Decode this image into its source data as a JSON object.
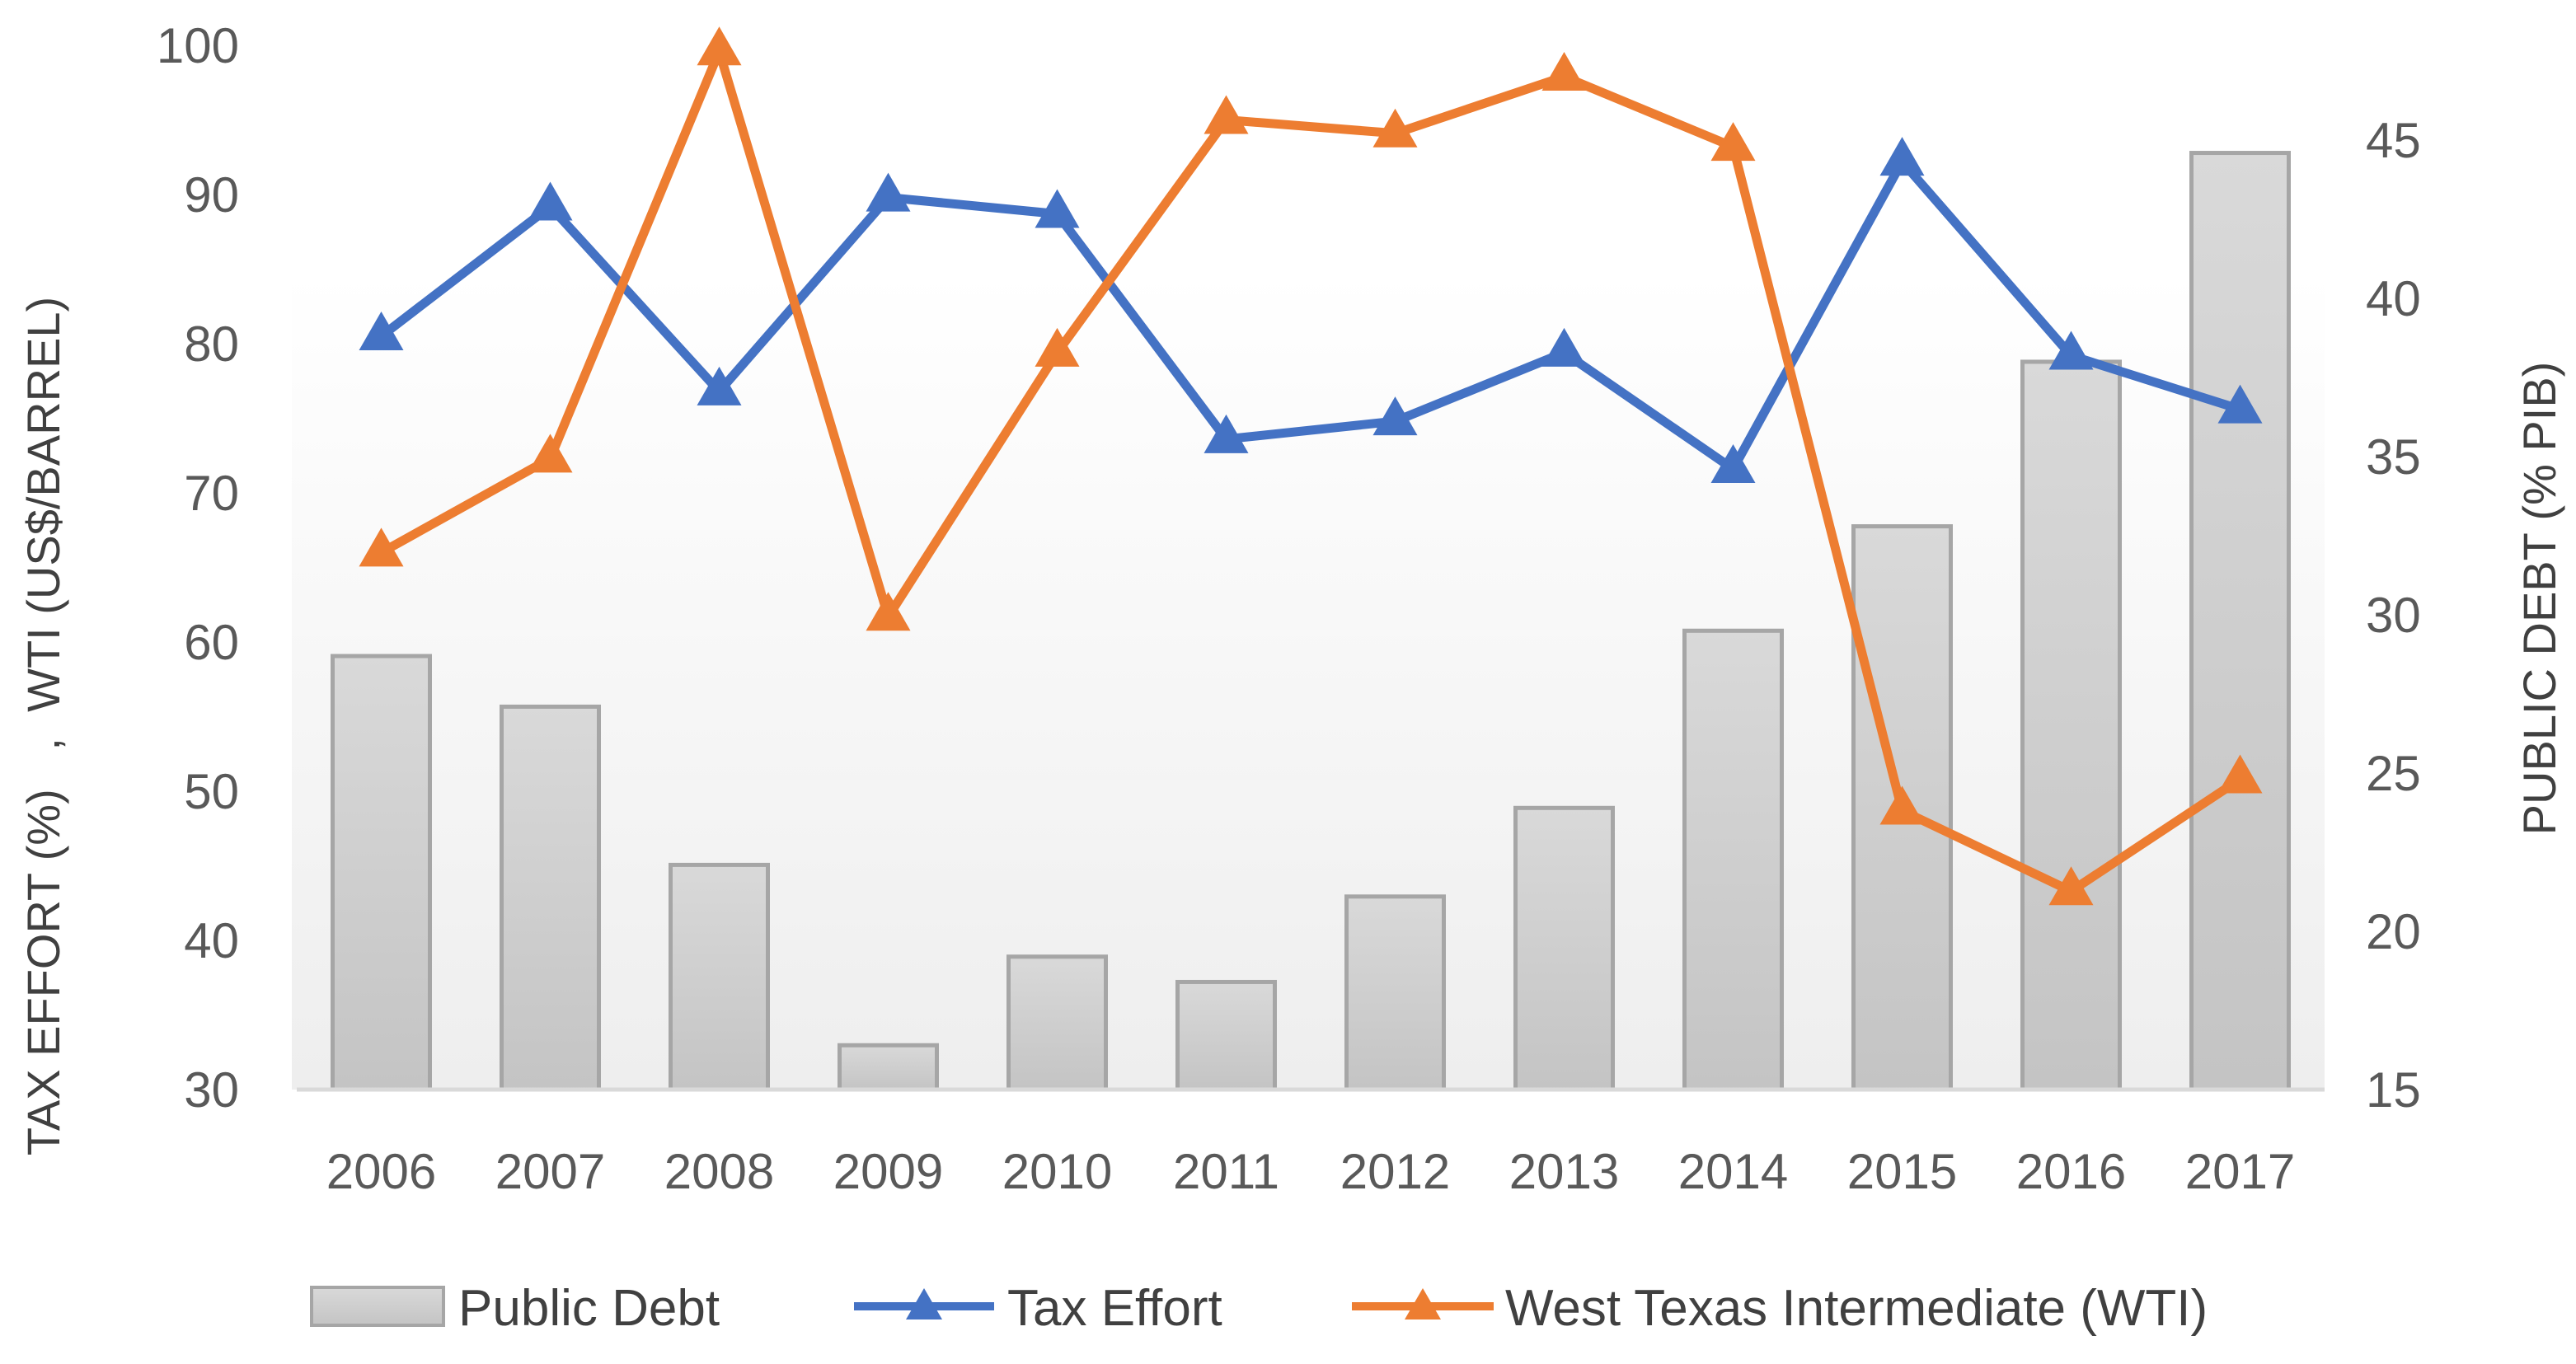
{
  "chart_data": {
    "type": "bar",
    "title": "",
    "categories": [
      "2006",
      "2007",
      "2008",
      "2009",
      "2010",
      "2011",
      "2012",
      "2013",
      "2014",
      "2015",
      "2016",
      "2017"
    ],
    "series": [
      {
        "name": "Public Debt",
        "type": "bar",
        "axis": "right",
        "color": "#c8c8c8",
        "values": [
          28.7,
          27.1,
          22.1,
          16.4,
          19.2,
          18.4,
          21.1,
          23.9,
          29.5,
          32.8,
          38.0,
          44.6
        ]
      },
      {
        "name": "Tax Effort",
        "type": "line",
        "axis": "left",
        "color": "#4472c4",
        "marker": "triangle",
        "values": [
          80.5,
          89.2,
          76.8,
          89.8,
          88.7,
          73.6,
          74.8,
          79.4,
          71.6,
          92.2,
          79.2,
          75.6
        ]
      },
      {
        "name": "West Texas Intermediate (WTI)",
        "type": "line",
        "axis": "left",
        "color": "#ed7d31",
        "marker": "triangle",
        "values": [
          66.0,
          72.3,
          99.6,
          61.7,
          79.4,
          95.0,
          94.1,
          97.9,
          93.2,
          48.7,
          43.3,
          50.8
        ]
      }
    ],
    "y_left": {
      "label": "TAX EFFORT (%)   ,  WTI (US$/BARREL)",
      "ylim": [
        30,
        100
      ],
      "ticks": [
        "30",
        "40",
        "50",
        "60",
        "70",
        "80",
        "90",
        "100"
      ]
    },
    "y_right": {
      "label": "PUBLIC DEBT (% PIB)",
      "ylim": [
        15,
        48
      ],
      "ticks": [
        "15",
        "20",
        "25",
        "30",
        "35",
        "40",
        "45"
      ]
    },
    "legend": {
      "position": "bottom",
      "items": [
        "Public Debt",
        "Tax Effort",
        "West Texas Intermediate (WTI)"
      ]
    },
    "grid": false,
    "colors": {
      "bar_fill": "#c8c8c8",
      "bar_stroke": "#a6a6a6",
      "axis_line": "#d9d9d9",
      "tax_effort": "#4472c4",
      "wti": "#ed7d31"
    }
  }
}
